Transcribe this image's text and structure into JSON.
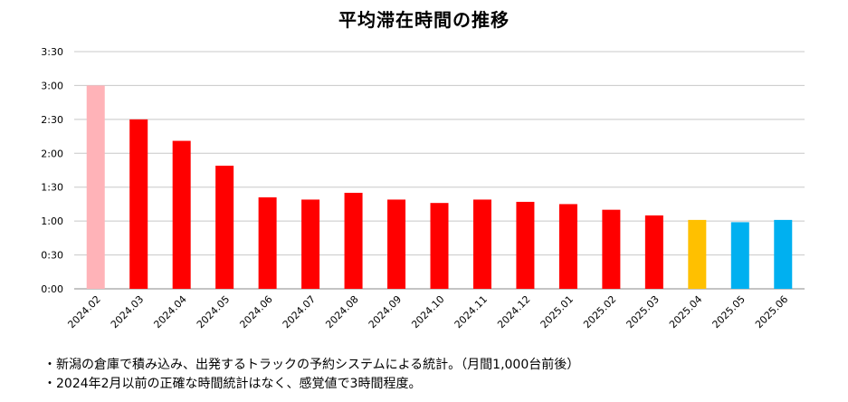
{
  "chart_data": {
    "type": "bar",
    "title": "平均滞在時間の推移",
    "xlabel": "",
    "ylabel": "",
    "y_unit": "minutes",
    "ylim": [
      0,
      210
    ],
    "yticks": [
      {
        "value": 0,
        "label": "0:00"
      },
      {
        "value": 30,
        "label": "0:30"
      },
      {
        "value": 60,
        "label": "1:00"
      },
      {
        "value": 90,
        "label": "1:30"
      },
      {
        "value": 120,
        "label": "2:00"
      },
      {
        "value": 150,
        "label": "2:30"
      },
      {
        "value": 180,
        "label": "3:00"
      },
      {
        "value": 210,
        "label": "3:30"
      }
    ],
    "grid": true,
    "categories": [
      "2024.02",
      "2024.03",
      "2024.04",
      "2024.05",
      "2024.06",
      "2024.07",
      "2024.08",
      "2024.09",
      "2024.10",
      "2024.11",
      "2024.12",
      "2025.01",
      "2025.02",
      "2025.03",
      "2025.04",
      "2025.05",
      "2025.06"
    ],
    "values": [
      180,
      150,
      131,
      109,
      81,
      79,
      85,
      79,
      76,
      79,
      77,
      75,
      70,
      65,
      61,
      59,
      61
    ],
    "colors": [
      "#ffb3b8",
      "#ff0000",
      "#ff0000",
      "#ff0000",
      "#ff0000",
      "#ff0000",
      "#ff0000",
      "#ff0000",
      "#ff0000",
      "#ff0000",
      "#ff0000",
      "#ff0000",
      "#ff0000",
      "#ff0000",
      "#ffc000",
      "#00b0f0",
      "#00b0f0"
    ]
  },
  "notes": [
    "・新潟の倉庫で積み込み、出発するトラックの予約システムによる統計。（月間1,000台前後）",
    "・2024年2月以前の正確な時間統計はなく、感覚値で3時間程度。"
  ],
  "colors": {
    "grid": "#c8c8c8",
    "axis": "#888888",
    "text": "#000000"
  }
}
